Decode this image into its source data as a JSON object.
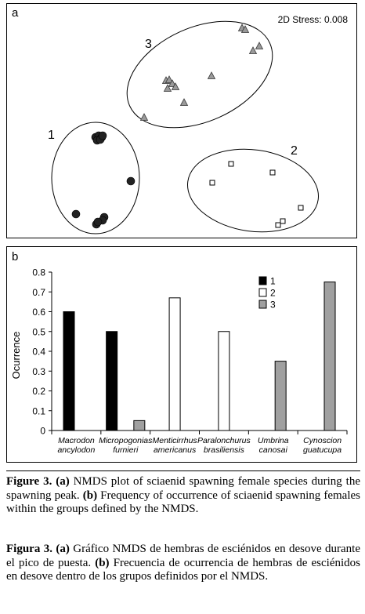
{
  "panel_a": {
    "label": "a",
    "stress": "2D Stress: 0.008",
    "group_labels": [
      "1",
      "2",
      "3"
    ]
  },
  "panel_b": {
    "label": "b"
  },
  "chart_data": [
    {
      "type": "scatter",
      "title": "",
      "annotation": "2D Stress: 0.008",
      "series": [
        {
          "name": "1",
          "marker": "filled-circle",
          "color": "#222222",
          "points": [
            [
              113,
              170
            ],
            [
              117,
              168
            ],
            [
              121,
              170
            ],
            [
              115,
              174
            ],
            [
              119,
              173
            ],
            [
              122,
              168
            ],
            [
              158,
              226
            ],
            [
              88,
              268
            ],
            [
              124,
              272
            ],
            [
              122,
              276
            ],
            [
              114,
              281
            ],
            [
              116,
              278
            ]
          ]
        },
        {
          "name": "2",
          "marker": "open-square",
          "color": "#ffffff",
          "points": [
            [
              286,
              204
            ],
            [
              339,
              215
            ],
            [
              262,
              228
            ],
            [
              375,
              260
            ],
            [
              352,
              277
            ],
            [
              346,
              282
            ]
          ]
        },
        {
          "name": "3",
          "marker": "gray-triangle",
          "color": "#9a9a9a",
          "points": [
            [
              300,
              31
            ],
            [
              304,
              33
            ],
            [
              322,
              54
            ],
            [
              314,
              60
            ],
            [
              261,
              92
            ],
            [
              203,
              98
            ],
            [
              207,
              97
            ],
            [
              211,
              102
            ],
            [
              205,
              108
            ],
            [
              215,
              106
            ],
            [
              226,
              126
            ],
            [
              175,
              145
            ]
          ]
        }
      ]
    },
    {
      "type": "bar",
      "title": "",
      "xlabel": "",
      "ylabel": "Ocurrence",
      "ylim": [
        0,
        0.8
      ],
      "yticks": [
        "0",
        "0.1",
        "0.2",
        "0.3",
        "0.4",
        "0.5",
        "0.6",
        "0.7",
        "0.8"
      ],
      "categories": [
        [
          "Macrodon",
          "ancylodon"
        ],
        [
          "Micropogonias",
          "furnieri"
        ],
        [
          "Menticirrhus",
          "americanus"
        ],
        [
          "Paralonchurus",
          "brasiliensis"
        ],
        [
          "Umbrina",
          "canosai"
        ],
        [
          "Cynoscion",
          "guatucupa"
        ]
      ],
      "legend_position": "top-right",
      "series": [
        {
          "name": "1",
          "color": "#000000",
          "values": [
            0.6,
            0.5,
            0,
            0,
            0,
            0
          ]
        },
        {
          "name": "2",
          "color": "#ffffff",
          "values": [
            0,
            0,
            0.67,
            0.5,
            0,
            0
          ]
        },
        {
          "name": "3",
          "color": "#a0a0a0",
          "values": [
            0,
            0.05,
            0,
            0,
            0.35,
            0.75
          ]
        }
      ]
    }
  ],
  "caption_en": {
    "figure": "Figure 3.",
    "a_tag": "(a)",
    "a_text": " NMDS plot of sciaenid spawning female species during the spawning peak. ",
    "b_tag": "(b)",
    "b_text": " Frequency of occurrence of sciaenid spawning females within the groups defined by the NMDS."
  },
  "caption_es": {
    "figure": "Figura 3.",
    "a_tag": "(a)",
    "a_text": " Gráfico NMDS de hembras de esciénidos en desove durante el pico de puesta. ",
    "b_tag": "(b)",
    "b_text": " Frecuencia de ocurrencia de hembras de esciénidos en desove dentro de los grupos definidos por el NMDS."
  }
}
